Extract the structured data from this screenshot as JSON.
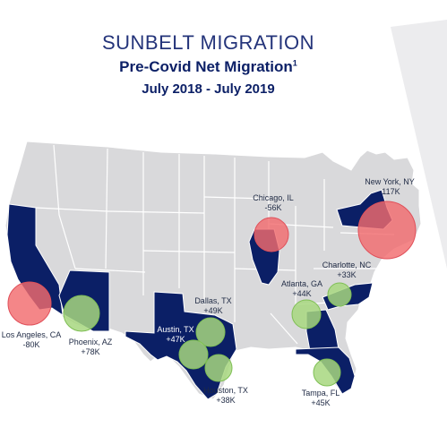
{
  "header": {
    "title": "SUNBELT MIGRATION",
    "subtitle": "Pre-Covid Net Migration",
    "footnote_marker": "1",
    "date_range": "July 2018 - July 2019"
  },
  "colors": {
    "title": "#24347a",
    "subtitle": "#0b1f66",
    "state_base": "#d9d9db",
    "state_highlight": "#0b1f66",
    "state_border": "#ffffff",
    "gain_circle": "#a7d77f",
    "loss_circle": "#f26b6e",
    "deco_stripe": "#ececee"
  },
  "cities": [
    {
      "name": "Los Angeles, CA",
      "value": "-80K",
      "trend": "loss"
    },
    {
      "name": "Phoenix, AZ",
      "value": "+78K",
      "trend": "gain"
    },
    {
      "name": "Dallas, TX",
      "value": "+49K",
      "trend": "gain"
    },
    {
      "name": "Austin, TX",
      "value": "+47K",
      "trend": "gain"
    },
    {
      "name": "Houston, TX",
      "value": "+38K",
      "trend": "gain"
    },
    {
      "name": "Chicago, IL",
      "value": "-56K",
      "trend": "loss"
    },
    {
      "name": "Atlanta, GA",
      "value": "+44K",
      "trend": "gain"
    },
    {
      "name": "Charlotte, NC",
      "value": "+33K",
      "trend": "gain"
    },
    {
      "name": "Tampa, FL",
      "value": "+45K",
      "trend": "gain"
    },
    {
      "name": "New York, NY",
      "value": "-117K",
      "trend": "loss"
    }
  ]
}
